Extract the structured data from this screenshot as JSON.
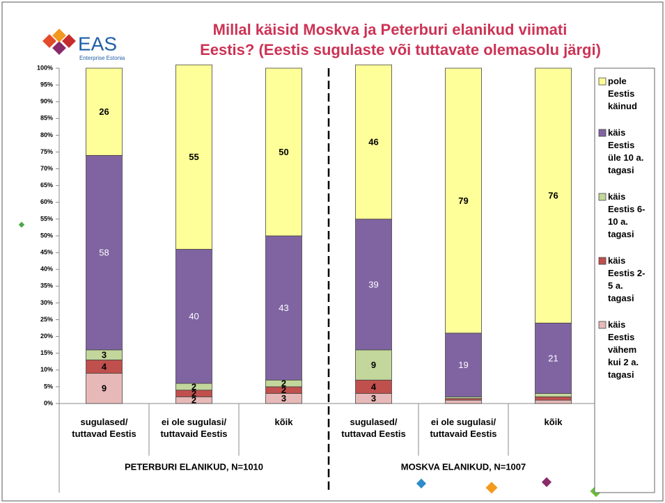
{
  "logo": {
    "name": "EAS",
    "subtitle": "Enterprise Estonia"
  },
  "chart_data": {
    "type": "stacked_bar",
    "title": [
      "Millal käisid Moskva ja Peterburi elanikud viimati",
      "Eestis? (Eestis sugulaste või tuttavate olemasolu järgi)"
    ],
    "categories": [
      "sugulased/ tuttavad Eestis",
      "ei ole sugulasi/ tuttavaid Eestis",
      "kõik",
      "sugulased/ tuttavad Eestis",
      "ei ole sugulasi/ tuttavaid Eestis",
      "kõik"
    ],
    "groups": [
      "PETERBURI ELANIKUD, N=1010",
      "MOSKVA ELANIKUD, N=1007"
    ],
    "series": [
      {
        "name": "käis Eestis vähem kui 2 a. tagasi",
        "color": "#e6b9b8",
        "label_color": "#000000",
        "values": [
          9,
          2,
          3,
          3,
          1,
          1
        ]
      },
      {
        "name": "käis Eestis 2-5 a. tagasi",
        "color": "#c0504d",
        "label_color": "#000000",
        "values": [
          4,
          2,
          2,
          4,
          0.5,
          1
        ]
      },
      {
        "name": "käis Eestis 6-10 a. tagasi",
        "color": "#c3d69b",
        "label_color": "#000000",
        "values": [
          3,
          2,
          2,
          9,
          0.5,
          1
        ]
      },
      {
        "name": "käis Eestis üle 10 a. tagasi",
        "color": "#8064a2",
        "label_color": "#ffffff",
        "values": [
          58,
          40,
          43,
          39,
          19,
          21
        ]
      },
      {
        "name": "pole Eestis käinud",
        "color": "#ffff99",
        "label_color": "#000000",
        "values": [
          26,
          55,
          50,
          46,
          79,
          76
        ]
      }
    ],
    "ylim": [
      0,
      100
    ],
    "yticks": [
      {
        "value": 0,
        "label": "0%"
      },
      {
        "value": 5,
        "label": "5%"
      },
      {
        "value": 10,
        "label": "10%"
      },
      {
        "value": 15,
        "label": "15%"
      },
      {
        "value": 20,
        "label": "20%"
      },
      {
        "value": 25,
        "label": "25%"
      },
      {
        "value": 30,
        "label": "30%"
      },
      {
        "value": 35,
        "label": "35%"
      },
      {
        "value": 40,
        "label": "40%"
      },
      {
        "value": 45,
        "label": "45%"
      },
      {
        "value": 50,
        "label": "50%"
      },
      {
        "value": 55,
        "label": "55%"
      },
      {
        "value": 60,
        "label": "60%"
      },
      {
        "value": 65,
        "label": "65%"
      },
      {
        "value": 70,
        "label": "70%"
      },
      {
        "value": 75,
        "label": "75%"
      },
      {
        "value": 80,
        "label": "80%"
      },
      {
        "value": 85,
        "label": "85%"
      },
      {
        "value": 90,
        "label": "90%"
      },
      {
        "value": 95,
        "label": "95%"
      },
      {
        "value": 100,
        "label": "100%"
      }
    ],
    "grid": false,
    "legend": "right"
  }
}
